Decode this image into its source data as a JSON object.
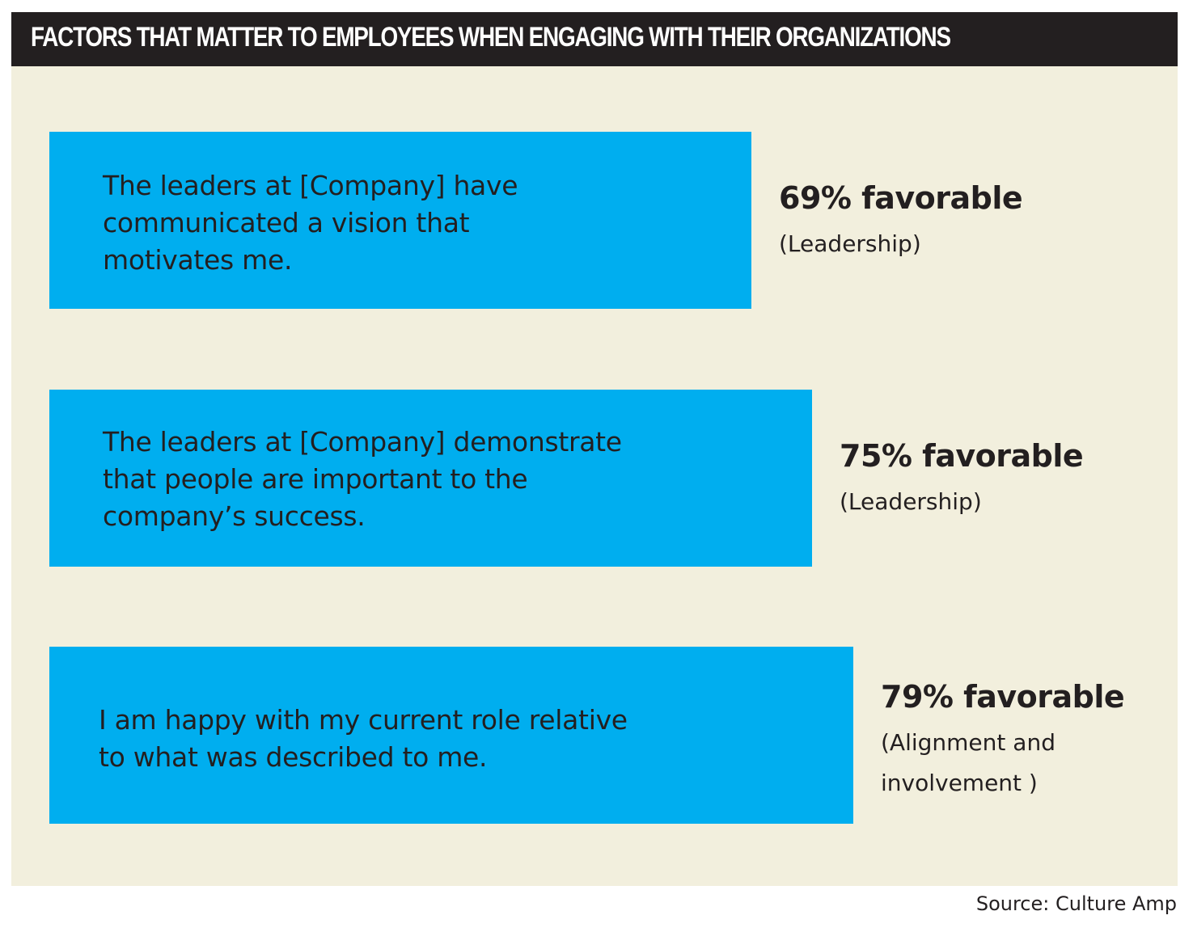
{
  "chart_data": {
    "type": "bar",
    "title": "FACTORS THAT MATTER TO EMPLOYEES WHEN ENGAGING WITH THEIR ORGANIZATIONS",
    "orientation": "horizontal",
    "xlim": [
      0,
      100
    ],
    "categories": [
      "The leaders at [Company] have communicated a vision that motivates me.",
      "The leaders at [Company] demonstrate that people are important to the company’s success.",
      "I am happy with my current role relative to what was described to me."
    ],
    "display_text": [
      "The leaders at [Company] have\ncommunicated a vision that\nmotivates me.",
      "The leaders at [Company] demonstrate\nthat people are important to the\ncompany’s success.",
      "I am happy with my current role relative\nto what was described to me."
    ],
    "values": [
      69,
      75,
      79
    ],
    "value_labels": [
      "69% favorable",
      "75% favorable",
      "79% favorable"
    ],
    "groups": [
      "(Leadership)",
      "(Leadership)",
      "(Alignment and\ninvolvement )"
    ],
    "unit": "% favorable",
    "source": "Source: Culture Amp",
    "colors": {
      "bar": "#00aeef",
      "background": "#f2efdd",
      "title_bar": "#231f20",
      "text": "#231f20"
    }
  }
}
